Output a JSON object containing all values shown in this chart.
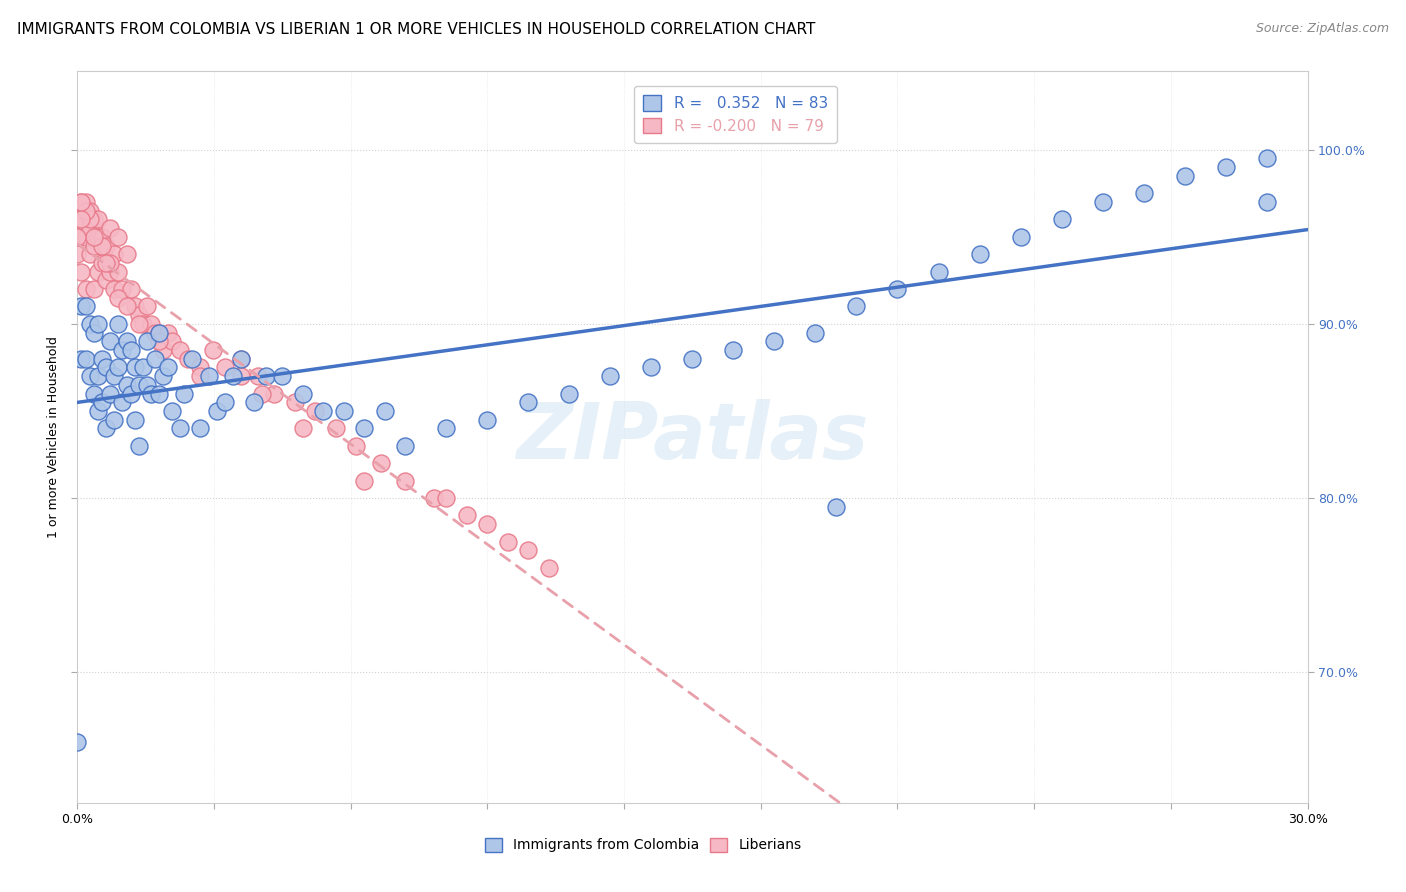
{
  "title": "IMMIGRANTS FROM COLOMBIA VS LIBERIAN 1 OR MORE VEHICLES IN HOUSEHOLD CORRELATION CHART",
  "source": "Source: ZipAtlas.com",
  "ylabel": "1 or more Vehicles in Household",
  "colombia_R": 0.352,
  "colombia_N": 83,
  "liberia_R": -0.2,
  "liberia_N": 79,
  "colombia_color": "#aec6e8",
  "colombia_edge_color": "#4472c4",
  "liberia_color": "#f5b8c4",
  "liberia_edge_color": "#e8798a",
  "colombia_line_color": "#4472c4",
  "liberia_line_color": "#e8a0aa",
  "background_color": "#ffffff",
  "watermark": "ZIPatlas",
  "xlim": [
    0.0,
    0.3
  ],
  "ylim": [
    0.625,
    1.045
  ],
  "ytick_positions": [
    0.7,
    0.8,
    0.9,
    1.0
  ],
  "ytick_labels": [
    "70.0%",
    "80.0%",
    "90.0%",
    "100.0%"
  ],
  "title_fontsize": 11,
  "axis_label_fontsize": 9,
  "tick_fontsize": 9,
  "legend_fontsize": 11,
  "source_fontsize": 9,
  "colombia_scatter": {
    "x": [
      0.0,
      0.001,
      0.001,
      0.002,
      0.002,
      0.003,
      0.003,
      0.004,
      0.004,
      0.005,
      0.005,
      0.005,
      0.006,
      0.006,
      0.007,
      0.007,
      0.008,
      0.008,
      0.009,
      0.009,
      0.01,
      0.01,
      0.011,
      0.011,
      0.012,
      0.012,
      0.013,
      0.013,
      0.014,
      0.014,
      0.015,
      0.015,
      0.016,
      0.017,
      0.017,
      0.018,
      0.019,
      0.02,
      0.021,
      0.022,
      0.023,
      0.025,
      0.026,
      0.028,
      0.03,
      0.032,
      0.034,
      0.036,
      0.038,
      0.04,
      0.043,
      0.046,
      0.05,
      0.055,
      0.06,
      0.065,
      0.07,
      0.075,
      0.08,
      0.09,
      0.1,
      0.11,
      0.12,
      0.13,
      0.14,
      0.15,
      0.16,
      0.17,
      0.18,
      0.19,
      0.2,
      0.21,
      0.22,
      0.23,
      0.24,
      0.25,
      0.26,
      0.27,
      0.28,
      0.29,
      0.02,
      0.185,
      0.29
    ],
    "y": [
      0.66,
      0.88,
      0.91,
      0.88,
      0.91,
      0.87,
      0.9,
      0.86,
      0.895,
      0.85,
      0.87,
      0.9,
      0.855,
      0.88,
      0.84,
      0.875,
      0.86,
      0.89,
      0.845,
      0.87,
      0.875,
      0.9,
      0.855,
      0.885,
      0.865,
      0.89,
      0.86,
      0.885,
      0.845,
      0.875,
      0.83,
      0.865,
      0.875,
      0.865,
      0.89,
      0.86,
      0.88,
      0.895,
      0.87,
      0.875,
      0.85,
      0.84,
      0.86,
      0.88,
      0.84,
      0.87,
      0.85,
      0.855,
      0.87,
      0.88,
      0.855,
      0.87,
      0.87,
      0.86,
      0.85,
      0.85,
      0.84,
      0.85,
      0.83,
      0.84,
      0.845,
      0.855,
      0.86,
      0.87,
      0.875,
      0.88,
      0.885,
      0.89,
      0.895,
      0.91,
      0.92,
      0.93,
      0.94,
      0.95,
      0.96,
      0.97,
      0.975,
      0.985,
      0.99,
      0.995,
      0.86,
      0.795,
      0.97
    ]
  },
  "liberia_scatter": {
    "x": [
      0.0,
      0.0,
      0.001,
      0.001,
      0.001,
      0.002,
      0.002,
      0.002,
      0.003,
      0.003,
      0.003,
      0.004,
      0.004,
      0.004,
      0.005,
      0.005,
      0.005,
      0.006,
      0.006,
      0.007,
      0.007,
      0.008,
      0.008,
      0.009,
      0.009,
      0.01,
      0.01,
      0.011,
      0.012,
      0.013,
      0.014,
      0.015,
      0.016,
      0.017,
      0.018,
      0.019,
      0.02,
      0.021,
      0.022,
      0.023,
      0.025,
      0.027,
      0.03,
      0.033,
      0.036,
      0.04,
      0.044,
      0.048,
      0.053,
      0.058,
      0.063,
      0.068,
      0.074,
      0.08,
      0.087,
      0.095,
      0.1,
      0.105,
      0.11,
      0.115,
      0.04,
      0.055,
      0.07,
      0.09,
      0.02,
      0.03,
      0.045,
      0.01,
      0.015,
      0.008,
      0.012,
      0.006,
      0.007,
      0.003,
      0.004,
      0.002,
      0.001,
      0.001,
      0.0
    ],
    "y": [
      0.94,
      0.96,
      0.95,
      0.97,
      0.93,
      0.95,
      0.97,
      0.92,
      0.955,
      0.94,
      0.965,
      0.945,
      0.96,
      0.92,
      0.95,
      0.93,
      0.96,
      0.935,
      0.95,
      0.925,
      0.945,
      0.93,
      0.955,
      0.92,
      0.94,
      0.93,
      0.95,
      0.92,
      0.94,
      0.92,
      0.91,
      0.905,
      0.9,
      0.91,
      0.9,
      0.895,
      0.895,
      0.885,
      0.895,
      0.89,
      0.885,
      0.88,
      0.875,
      0.885,
      0.875,
      0.88,
      0.87,
      0.86,
      0.855,
      0.85,
      0.84,
      0.83,
      0.82,
      0.81,
      0.8,
      0.79,
      0.785,
      0.775,
      0.77,
      0.76,
      0.87,
      0.84,
      0.81,
      0.8,
      0.89,
      0.87,
      0.86,
      0.915,
      0.9,
      0.935,
      0.91,
      0.945,
      0.935,
      0.96,
      0.95,
      0.965,
      0.96,
      0.97,
      0.95
    ]
  }
}
